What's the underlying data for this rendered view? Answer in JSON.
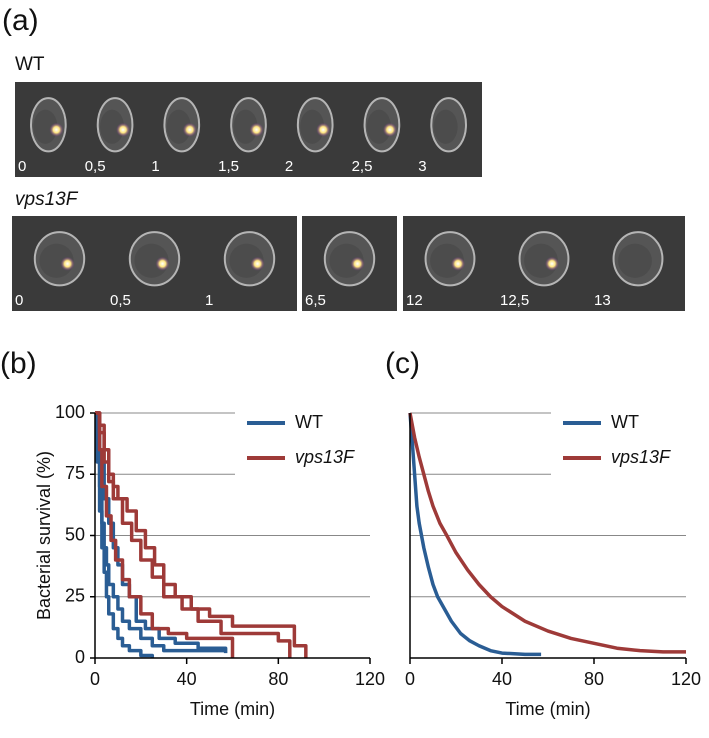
{
  "panel_a": {
    "label": "(a)",
    "rows": [
      {
        "name": "WT",
        "strips": [
          [
            "0",
            "0,5",
            "1",
            "1,5",
            "2",
            "2,5",
            "3"
          ]
        ]
      },
      {
        "name": "vps13F",
        "strips": [
          [
            "0",
            "0,5",
            "1"
          ],
          [
            "6,5"
          ],
          [
            "12",
            "12,5",
            "13"
          ]
        ]
      }
    ]
  },
  "chart_data": [
    {
      "type": "line",
      "panel_label": "(b)",
      "drawstyle": "steps-post",
      "ylabel": "Bacterial survival (%)",
      "xlabel": "Time (min)",
      "xlim": [
        0,
        120
      ],
      "ylim": [
        0,
        100
      ],
      "xticks": [
        0,
        40,
        80,
        120
      ],
      "yticks": [
        0,
        25,
        50,
        75,
        100
      ],
      "ytick_labels": true,
      "grid": true,
      "legend": "upper right",
      "series": [
        {
          "name": "WT",
          "color": "#2a5d94",
          "curves": [
            {
              "x": [
                0,
                1,
                2,
                3,
                4,
                5,
                6,
                8,
                10,
                12,
                15,
                20,
                25,
                30,
                57
              ],
              "values": [
                100,
                85,
                70,
                55,
                45,
                38,
                30,
                25,
                20,
                15,
                12,
                8,
                5,
                3,
                3
              ]
            },
            {
              "x": [
                0,
                1,
                2,
                3,
                4,
                5,
                6,
                8,
                10,
                12,
                15,
                20,
                25
              ],
              "values": [
                100,
                80,
                60,
                45,
                35,
                25,
                18,
                12,
                8,
                5,
                3,
                1,
                0
              ]
            },
            {
              "x": [
                0,
                2,
                4,
                6,
                8,
                10,
                12,
                15,
                18,
                22,
                28,
                35,
                45,
                57
              ],
              "values": [
                100,
                80,
                65,
                55,
                45,
                38,
                30,
                25,
                15,
                12,
                8,
                6,
                4,
                2
              ]
            }
          ]
        },
        {
          "name": "vps13F",
          "color": "#9e3a38",
          "curves": [
            {
              "x": [
                0,
                2,
                4,
                6,
                8,
                10,
                14,
                18,
                22,
                26,
                30,
                35,
                42,
                50,
                60,
                87,
                92
              ],
              "values": [
                100,
                95,
                85,
                75,
                70,
                65,
                60,
                52,
                45,
                38,
                30,
                25,
                20,
                17,
                13,
                5,
                0
              ]
            },
            {
              "x": [
                0,
                2,
                4,
                6,
                8,
                12,
                16,
                20,
                25,
                30,
                38,
                45,
                55,
                80,
                85
              ],
              "values": [
                100,
                92,
                80,
                72,
                65,
                55,
                48,
                40,
                33,
                25,
                20,
                15,
                10,
                7,
                0
              ]
            },
            {
              "x": [
                0,
                2,
                3,
                5,
                7,
                9,
                12,
                15,
                20,
                25,
                32,
                40,
                60
              ],
              "values": [
                100,
                85,
                70,
                58,
                48,
                40,
                32,
                25,
                18,
                12,
                10,
                8,
                0
              ]
            }
          ]
        }
      ]
    },
    {
      "type": "line",
      "panel_label": "(c)",
      "xlabel": "Time (min)",
      "xlim": [
        0,
        120
      ],
      "ylim": [
        0,
        100
      ],
      "xticks": [
        0,
        40,
        80,
        120
      ],
      "yticks": [
        0,
        25,
        50,
        75,
        100
      ],
      "ytick_labels": false,
      "grid": true,
      "legend": "upper right",
      "series": [
        {
          "name": "WT",
          "color": "#2a5d94",
          "curves": [
            {
              "x": [
                0,
                1,
                2,
                3,
                4,
                5,
                6,
                8,
                10,
                12,
                15,
                18,
                22,
                26,
                30,
                35,
                40,
                50,
                57
              ],
              "values": [
                100,
                88,
                75,
                62,
                55,
                50,
                45,
                37,
                30,
                25,
                20,
                15,
                10,
                7,
                5,
                3,
                2,
                1.5,
                1.5
              ]
            }
          ]
        },
        {
          "name": "vps13F",
          "color": "#9e3a38",
          "curves": [
            {
              "x": [
                0,
                2,
                4,
                6,
                8,
                10,
                13,
                16,
                20,
                25,
                30,
                35,
                40,
                50,
                60,
                70,
                80,
                90,
                100,
                110,
                120
              ],
              "values": [
                100,
                90,
                82,
                75,
                68,
                62,
                55,
                50,
                43,
                36,
                30,
                25,
                21,
                15,
                11,
                8,
                6,
                4,
                3,
                2.5,
                2.5
              ]
            }
          ]
        }
      ]
    }
  ]
}
